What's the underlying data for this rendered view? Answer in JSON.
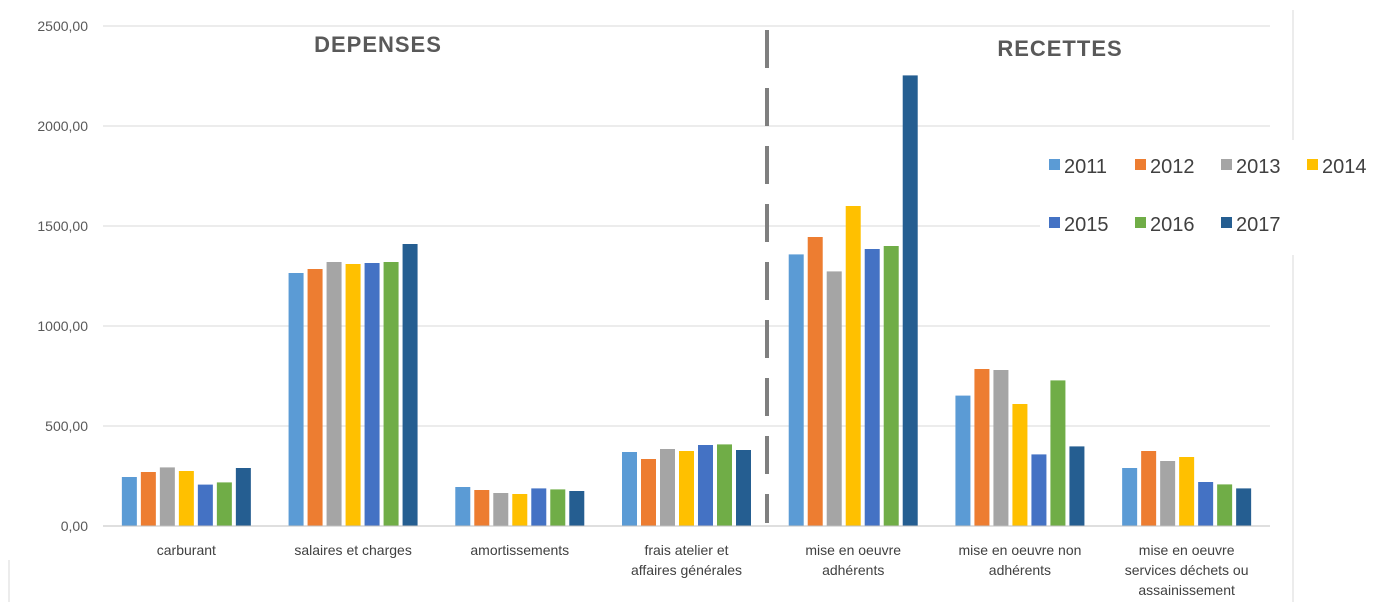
{
  "chart_data": {
    "type": "bar",
    "title": "",
    "xlabel": "",
    "ylabel": "",
    "ylim": [
      0,
      2500
    ],
    "y_ticks": [
      "0,00",
      "500,00",
      "1000,00",
      "1500,00",
      "2000,00",
      "2500,00"
    ],
    "y_tick_values": [
      0,
      500,
      1000,
      1500,
      2000,
      2500
    ],
    "grid": true,
    "legend_position": "right",
    "annotations": {
      "left_section": "DEPENSES",
      "right_section": "RECETTES"
    },
    "categories": [
      [
        "carburant"
      ],
      [
        "salaires et charges"
      ],
      [
        "amortissements"
      ],
      [
        "frais atelier et",
        "affaires générales"
      ],
      [
        "mise en oeuvre",
        "adhérents"
      ],
      [
        "mise en oeuvre non",
        "adhérents"
      ],
      [
        "mise en oeuvre",
        "services déchets ou",
        "assainissement"
      ]
    ],
    "series": [
      {
        "name": "2011",
        "color": "#5B9BD5",
        "values": [
          245,
          1265,
          195,
          370,
          1358,
          652,
          290
        ]
      },
      {
        "name": "2012",
        "color": "#ED7D31",
        "values": [
          270,
          1285,
          180,
          335,
          1445,
          785,
          375
        ]
      },
      {
        "name": "2013",
        "color": "#A5A5A5",
        "values": [
          293,
          1320,
          165,
          385,
          1273,
          780,
          325
        ]
      },
      {
        "name": "2014",
        "color": "#FFC000",
        "values": [
          275,
          1310,
          160,
          375,
          1600,
          610,
          345
        ]
      },
      {
        "name": "2015",
        "color": "#4472C4",
        "values": [
          207,
          1315,
          188,
          405,
          1385,
          358,
          220
        ]
      },
      {
        "name": "2016",
        "color": "#70AD47",
        "values": [
          218,
          1320,
          183,
          408,
          1400,
          728,
          208
        ]
      },
      {
        "name": "2017",
        "color": "#255E91",
        "values": [
          290,
          1410,
          175,
          380,
          2253,
          398,
          188
        ]
      }
    ]
  }
}
